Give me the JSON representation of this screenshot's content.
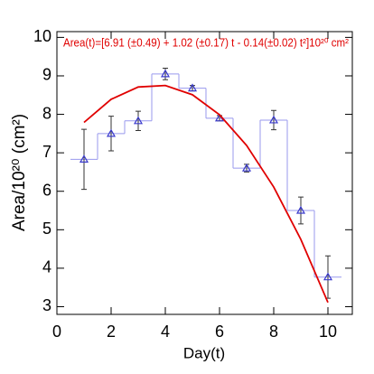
{
  "chart_data": {
    "type": "line",
    "title": "Area(t)=[6.91 (±0.49) + 1.02 (±0.17) t - 0.14(±0.02) t²]10²⁰ cm²",
    "x_label": "Day(t)",
    "y_label": "Area/10²⁰ (cm²)",
    "x": [
      1,
      2,
      3,
      4,
      5,
      6,
      7,
      8,
      9,
      10
    ],
    "series": [
      {
        "color": "#3a3acc",
        "values": [
          6.83,
          7.5,
          7.83,
          9.05,
          8.68,
          7.9,
          6.6,
          7.85,
          5.5,
          3.77
        ],
        "errors": [
          0.78,
          0.45,
          0.25,
          0.15,
          0.07,
          0.07,
          0.1,
          0.25,
          0.35,
          0.55
        ],
        "step_color": "#9999ee",
        "error_color": "#333333"
      },
      {
        "color": "#e00000",
        "values": [
          7.79,
          8.39,
          8.71,
          8.75,
          8.51,
          7.99,
          7.19,
          6.11,
          4.75,
          3.11
        ]
      }
    ],
    "xlim": [
      0,
      10.9
    ],
    "ylim": [
      2.8,
      10.15
    ],
    "xticks": [
      0,
      2,
      4,
      6,
      8,
      10
    ],
    "yticks": [
      3,
      4,
      5,
      6,
      7,
      8,
      9,
      10
    ]
  }
}
